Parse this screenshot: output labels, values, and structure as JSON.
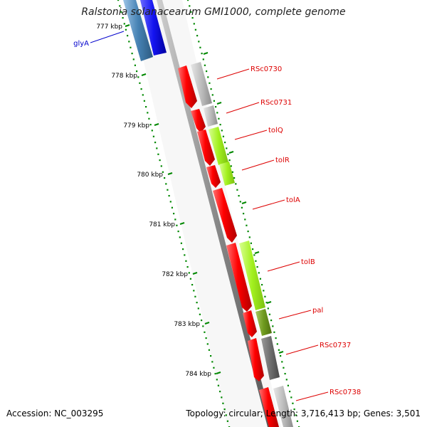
{
  "title": "Ralstonia solanacearum GMI1000, complete genome",
  "footer": {
    "accession": "Accession: NC_003295",
    "summary": "Topology: circular; Length: 3,716,413 bp; Genes: 3,501"
  },
  "scale_labels": [
    "777 kbp",
    "778 kbp",
    "779 kbp",
    "780 kbp",
    "781 kbp",
    "782 kbp",
    "783 kbp",
    "784 kbp"
  ],
  "gene_labels_right": [
    "RSc0730",
    "RSc0731",
    "tolQ",
    "tolR",
    "tolA",
    "tolB",
    "pal",
    "RSc0737",
    "RSc0738"
  ],
  "gene_labels_left": [
    "glyA"
  ],
  "colors": {
    "cds_red": "#ff0000",
    "cog_gray": "#b4b4b4",
    "cog_green": "#a2f01e",
    "cog_dark_green": "#6f9a1e",
    "cog_dark_gray": "#6e6e6e",
    "cog_blue": "#1414f0",
    "cog_steel": "#4682b4",
    "label_red": "#dd0000",
    "label_blue": "#0000cc",
    "dots": "#008800"
  }
}
